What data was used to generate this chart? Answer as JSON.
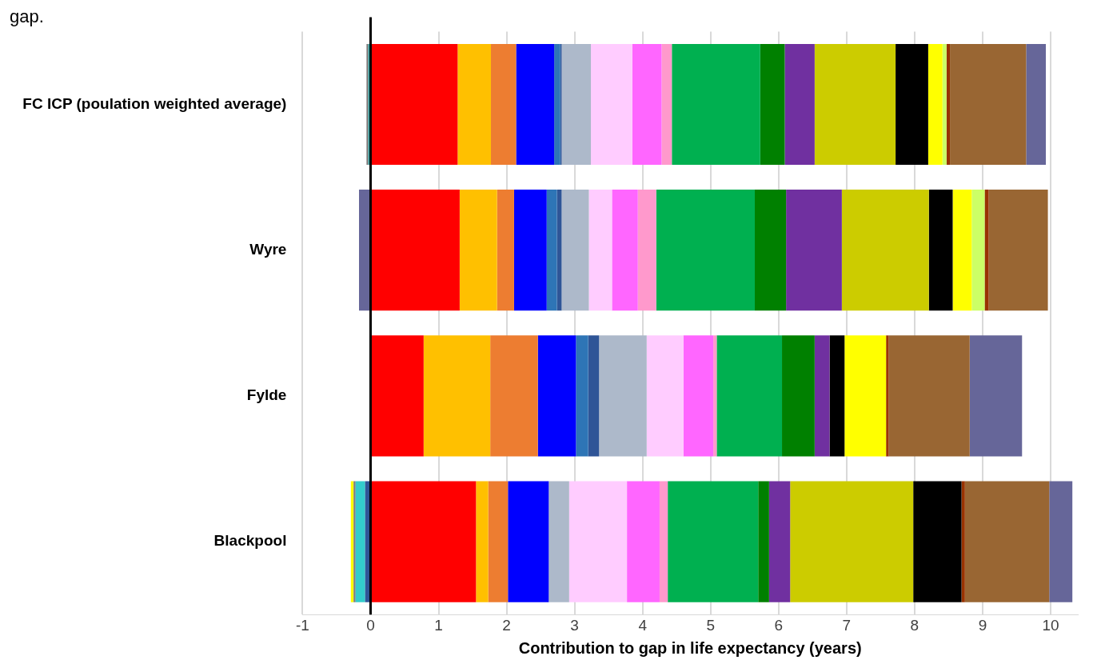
{
  "chart_data": {
    "type": "bar",
    "orientation": "horizontal",
    "stacked": true,
    "xlabel": "Contribution to gap in life expectancy (years)",
    "annotations": [
      "gap."
    ],
    "categories": [
      "FC ICP (poulation weighted average)",
      "Wyre",
      "Fylde",
      "Blackpool"
    ],
    "xlim": [
      -1,
      10.4
    ],
    "xticks": [
      -1,
      0,
      1,
      2,
      3,
      4,
      5,
      6,
      7,
      8,
      9,
      10
    ],
    "grid": "x",
    "legend": false,
    "ref_lines": [
      {
        "axis": "x",
        "value": 0,
        "label": null,
        "color": "#000000"
      }
    ],
    "series": [
      {
        "color": "#ff0000",
        "values": [
          1.28,
          1.31,
          0.78,
          1.55
        ]
      },
      {
        "color": "#ffc000",
        "values": [
          0.49,
          0.55,
          0.98,
          0.18
        ]
      },
      {
        "color": "#ed7d31",
        "values": [
          0.37,
          0.25,
          0.7,
          0.29
        ]
      },
      {
        "color": "#0000ff",
        "values": [
          0.56,
          0.48,
          0.56,
          0.6
        ]
      },
      {
        "color": "#2e75b6",
        "values": [
          0.09,
          0.15,
          0.18,
          null
        ]
      },
      {
        "color": "#2f5597",
        "values": [
          0.02,
          0.07,
          0.16,
          -0.08
        ]
      },
      {
        "color": "#33cccc",
        "values": [
          -0.03,
          null,
          null,
          -0.14
        ]
      },
      {
        "color": "#7f7f7f",
        "values": [
          -0.03,
          null,
          null,
          -0.03
        ]
      },
      {
        "color": "#adb9ca",
        "values": [
          0.43,
          0.4,
          0.7,
          0.3
        ]
      },
      {
        "color": "#ffccff",
        "values": [
          0.61,
          0.34,
          0.54,
          0.85
        ]
      },
      {
        "color": "#ff66ff",
        "values": [
          0.43,
          0.38,
          0.44,
          0.48
        ]
      },
      {
        "color": "#ff99cc",
        "values": [
          0.15,
          0.27,
          0.05,
          0.12
        ]
      },
      {
        "color": "#00b050",
        "values": [
          1.3,
          1.45,
          0.96,
          1.33
        ]
      },
      {
        "color": "#008000",
        "values": [
          0.36,
          0.46,
          0.48,
          0.16
        ]
      },
      {
        "color": "#7030a0",
        "values": [
          0.44,
          0.82,
          0.22,
          0.31
        ]
      },
      {
        "color": "#cccc00",
        "values": [
          1.19,
          1.28,
          null,
          1.81
        ]
      },
      {
        "color": "#000000",
        "values": [
          0.48,
          0.35,
          0.22,
          0.71
        ]
      },
      {
        "color": "#ffff00",
        "values": [
          0.21,
          0.28,
          0.61,
          -0.04
        ]
      },
      {
        "color": "#ccff66",
        "values": [
          0.06,
          0.19,
          null,
          null
        ]
      },
      {
        "color": "#993300",
        "values": [
          0.05,
          0.06,
          0.04,
          0.05
        ]
      },
      {
        "color": "#996633",
        "values": [
          1.12,
          0.87,
          1.19,
          1.24
        ]
      },
      {
        "color": "#666699",
        "values": [
          0.29,
          -0.17,
          0.77,
          0.34
        ]
      }
    ]
  }
}
